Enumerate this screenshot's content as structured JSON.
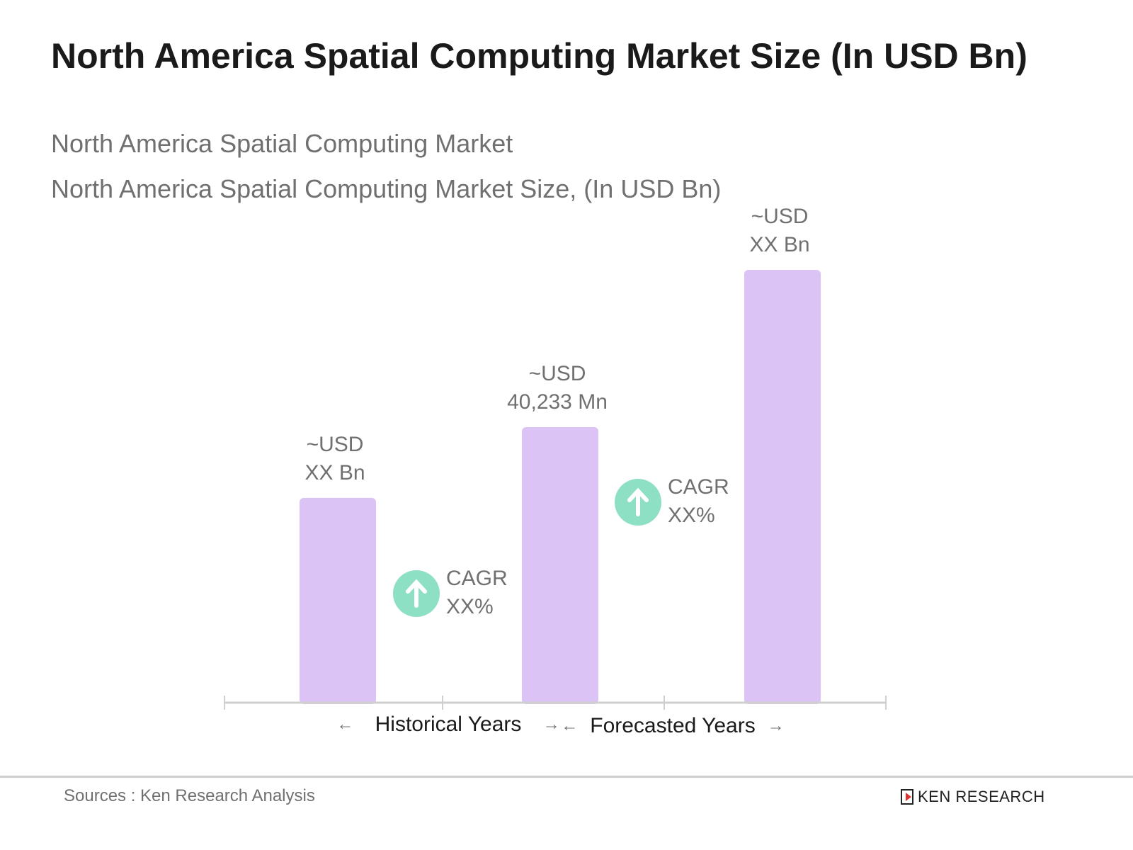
{
  "title": "North America Spatial Computing Market Size (In USD Bn)",
  "subtitle1": "North America Spatial Computing Market",
  "subtitle2": "North America Spatial Computing Market Size, (In USD Bn)",
  "chart_data": {
    "type": "bar",
    "unit": "USD Mn",
    "values_estimated": [
      29900,
      40233,
      63200
    ],
    "data_labels": [
      [
        "~USD",
        "XX Bn"
      ],
      [
        "~USD",
        "40,233 Mn"
      ],
      [
        "~USD",
        "XX Bn"
      ]
    ],
    "bar_color": "#dcc3f5",
    "cagr": [
      {
        "label": "CAGR",
        "value": "XX%"
      },
      {
        "label": "CAGR",
        "value": "XX%"
      }
    ],
    "cagr_color": "#8ee0c4",
    "period_labels": [
      "Historical Years",
      "Forecasted Years"
    ],
    "grid": false
  },
  "footer": {
    "source": "Sources : Ken Research Analysis",
    "logo_text": "KEN RESEARCH"
  }
}
